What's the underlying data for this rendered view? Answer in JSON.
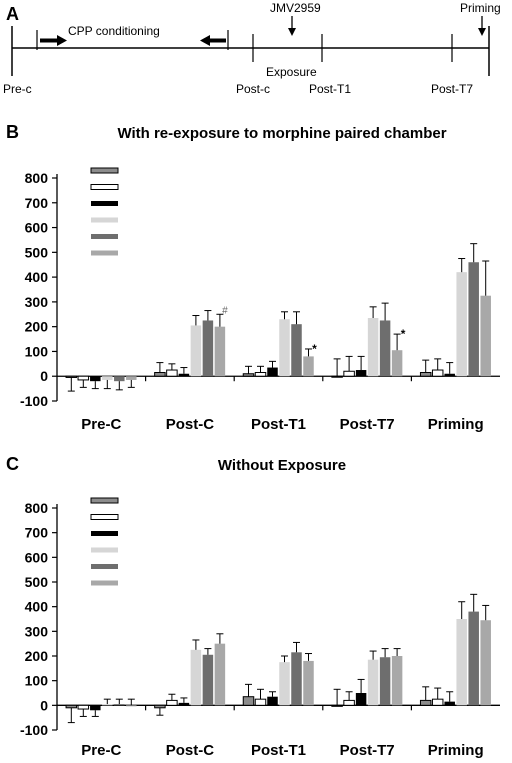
{
  "panels": {
    "a": {
      "letter": "A",
      "labels": {
        "pre_c": "Pre-c",
        "cpp": "CPP conditioning",
        "jmv": "JMV2959",
        "exposure": "Exposure",
        "post_c": "Post-c",
        "post_t1": "Post-T1",
        "post_t7": "Post-T7",
        "priming": "Priming"
      }
    },
    "b": {
      "letter": "B"
    },
    "c": {
      "letter": "C"
    }
  },
  "chart_data": [
    {
      "type": "bar",
      "title": "With re-exposure to morphine paired chamber",
      "categories": [
        "Pre-C",
        "Post-C",
        "Post-T1",
        "Post-T7",
        "Priming"
      ],
      "ylim": [
        -100,
        800
      ],
      "yticks": [
        "-100",
        "0",
        "100",
        "200",
        "300",
        "400",
        "500",
        "600",
        "700",
        "800"
      ],
      "grid": false,
      "legend_placement": "top-left",
      "series": [
        {
          "color": "#8c8c8c",
          "border": "#000000",
          "values": [
            -5,
            15,
            10,
            0,
            15
          ],
          "errors": [
            55,
            40,
            30,
            70,
            50
          ]
        },
        {
          "color": "#ffffff",
          "border": "#000000",
          "values": [
            -15,
            25,
            15,
            20,
            25
          ],
          "errors": [
            30,
            25,
            25,
            60,
            45
          ]
        },
        {
          "color": "#000000",
          "border": "#000000",
          "values": [
            -20,
            10,
            35,
            25,
            10
          ],
          "errors": [
            30,
            25,
            25,
            55,
            45
          ]
        },
        {
          "color": "#d6d6d6",
          "border": "#d6d6d6",
          "values": [
            -15,
            205,
            230,
            235,
            420
          ],
          "errors": [
            35,
            40,
            30,
            45,
            55
          ]
        },
        {
          "color": "#6e6e6e",
          "border": "#6e6e6e",
          "values": [
            -20,
            225,
            210,
            225,
            460
          ],
          "errors": [
            35,
            40,
            50,
            70,
            75
          ]
        },
        {
          "color": "#a8a8a8",
          "border": "#a8a8a8",
          "values": [
            -15,
            200,
            80,
            105,
            325
          ],
          "errors": [
            30,
            50,
            30,
            65,
            140
          ]
        }
      ],
      "annotations": [
        {
          "text": "#",
          "category": 1,
          "series": 5,
          "style": "hash"
        },
        {
          "text": "*",
          "category": 2,
          "series": 5,
          "style": "star"
        },
        {
          "text": "*",
          "category": 3,
          "series": 5,
          "style": "star"
        }
      ]
    },
    {
      "type": "bar",
      "title": "Without Exposure",
      "categories": [
        "Pre-C",
        "Post-C",
        "Post-T1",
        "Post-T7",
        "Priming"
      ],
      "ylim": [
        -100,
        800
      ],
      "yticks": [
        "-100",
        "0",
        "100",
        "200",
        "300",
        "400",
        "500",
        "600",
        "700",
        "800"
      ],
      "grid": false,
      "legend_placement": "top-left",
      "series": [
        {
          "color": "#8c8c8c",
          "border": "#000000",
          "values": [
            -10,
            -10,
            35,
            0,
            20
          ],
          "errors": [
            60,
            30,
            50,
            65,
            55
          ]
        },
        {
          "color": "#ffffff",
          "border": "#000000",
          "values": [
            -15,
            20,
            25,
            20,
            25
          ],
          "errors": [
            30,
            25,
            40,
            35,
            45
          ]
        },
        {
          "color": "#000000",
          "border": "#000000",
          "values": [
            -20,
            10,
            35,
            50,
            15
          ],
          "errors": [
            25,
            20,
            20,
            55,
            40
          ]
        },
        {
          "color": "#d6d6d6",
          "border": "#d6d6d6",
          "values": [
            5,
            225,
            175,
            185,
            350
          ],
          "errors": [
            20,
            40,
            25,
            35,
            70
          ]
        },
        {
          "color": "#6e6e6e",
          "border": "#6e6e6e",
          "values": [
            5,
            205,
            215,
            195,
            380
          ],
          "errors": [
            20,
            25,
            40,
            35,
            70
          ]
        },
        {
          "color": "#a8a8a8",
          "border": "#a8a8a8",
          "values": [
            0,
            250,
            180,
            200,
            345
          ],
          "errors": [
            25,
            40,
            30,
            30,
            60
          ]
        }
      ],
      "annotations": []
    }
  ]
}
